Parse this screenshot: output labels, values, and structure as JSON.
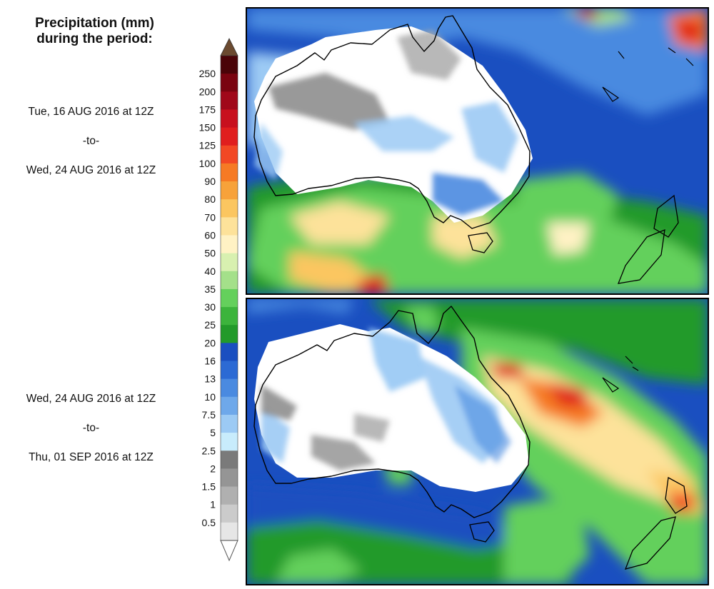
{
  "legend": {
    "title_line1": "Precipitation (mm)",
    "title_line2": "during the period:",
    "ticks": [
      "250",
      "200",
      "175",
      "150",
      "125",
      "100",
      "90",
      "80",
      "70",
      "60",
      "50",
      "40",
      "35",
      "30",
      "25",
      "20",
      "16",
      "13",
      "10",
      "7.5",
      "5",
      "2.5",
      "2",
      "1.5",
      "1",
      "0.5"
    ],
    "colors": [
      "#4a0408",
      "#7a0410",
      "#a0081a",
      "#c8101e",
      "#e01e1e",
      "#f24824",
      "#f67a24",
      "#f7a23a",
      "#fbc660",
      "#fde29a",
      "#fff2c4",
      "#d8f0b0",
      "#a4e08a",
      "#64d05c",
      "#3cb43c",
      "#229a2a",
      "#1a4fc0",
      "#2c6ad4",
      "#4a8ae0",
      "#6ea8ea",
      "#9ccaf4",
      "#c8ecfc",
      "#7a7a7a",
      "#959595",
      "#b0b0b0",
      "#cbcbcb",
      "#e6e6e6"
    ],
    "top_cap_color": "#6b4a30",
    "bottom_cap_color": "#ffffff"
  },
  "periods": [
    {
      "start": "Tue, 16 AUG 2016 at 12Z",
      "sep": "-to-",
      "end": "Wed, 24 AUG 2016 at 12Z"
    },
    {
      "start": "Wed, 24 AUG 2016 at 12Z",
      "sep": "-to-",
      "end": "Thu, 01 SEP 2016 at 12Z"
    }
  ],
  "maps": [
    {
      "region": "Australia and New Zealand",
      "period_index": 0
    },
    {
      "region": "Australia and New Zealand",
      "period_index": 1
    }
  ]
}
